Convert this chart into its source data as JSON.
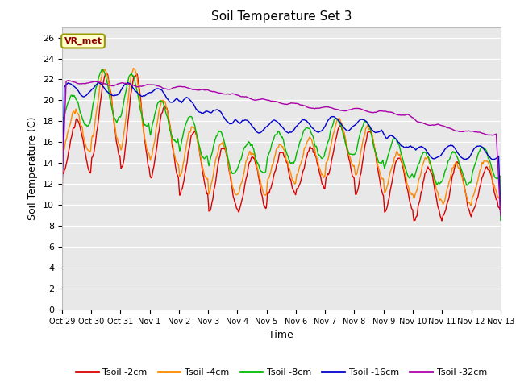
{
  "title": "Soil Temperature Set 3",
  "xlabel": "Time",
  "ylabel": "Soil Temperature (C)",
  "ylim": [
    0,
    27
  ],
  "yticks": [
    0,
    2,
    4,
    6,
    8,
    10,
    12,
    14,
    16,
    18,
    20,
    22,
    24,
    26
  ],
  "x_labels": [
    "Oct 29",
    "Oct 30",
    "Oct 31",
    "Nov 1",
    "Nov 2",
    "Nov 3",
    "Nov 4",
    "Nov 5",
    "Nov 6",
    "Nov 7",
    "Nov 8",
    "Nov 9",
    "Nov 10",
    "Nov 11",
    "Nov 12",
    "Nov 13"
  ],
  "legend_labels": [
    "Tsoil -2cm",
    "Tsoil -4cm",
    "Tsoil -8cm",
    "Tsoil -16cm",
    "Tsoil -32cm"
  ],
  "colors": [
    "#dd0000",
    "#ff8800",
    "#00bb00",
    "#0000cc",
    "#aa00aa"
  ],
  "line_width": 1.0,
  "plot_bg_color": "#e8e8e8",
  "grid_color": "#ffffff",
  "annotation_text": "VR_met",
  "annotation_bg": "#ffffcc",
  "annotation_border": "#999900",
  "fig_bg": "#ffffff"
}
